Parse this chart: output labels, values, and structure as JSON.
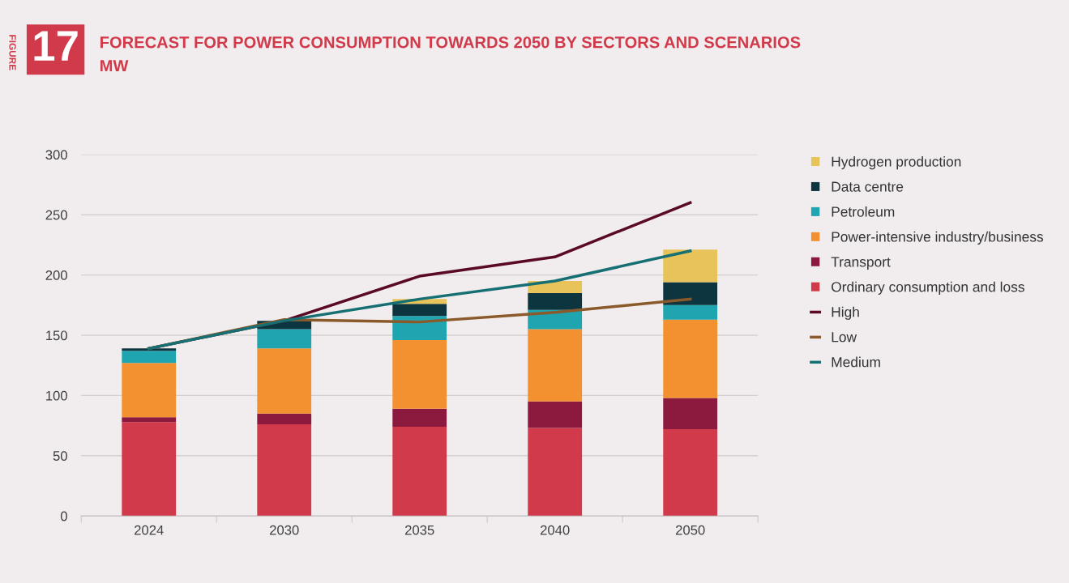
{
  "chart_data": {
    "type": "bar",
    "stacked": true,
    "title": "FORECAST FOR POWER CONSUMPTION TOWARDS 2050 BY SECTORS AND SCENARIOS",
    "subtitle": "MW",
    "annotations": [
      "FIGURE",
      "17"
    ],
    "categories": [
      "2024",
      "2030",
      "2035",
      "2040",
      "2050"
    ],
    "series": [
      {
        "name": "Ordinary consumption and loss",
        "color": "#d13a4a",
        "values": [
          78,
          76,
          74,
          73,
          72
        ]
      },
      {
        "name": "Transport",
        "color": "#8c1a3e",
        "values": [
          4,
          9,
          15,
          22,
          26
        ]
      },
      {
        "name": "Power-intensive industry/business",
        "color": "#f39130",
        "values": [
          45,
          54,
          57,
          60,
          65
        ]
      },
      {
        "name": "Petroleum",
        "color": "#1fa5b0",
        "values": [
          10,
          16,
          20,
          16,
          12
        ]
      },
      {
        "name": "Data centre",
        "color": "#0d3540",
        "values": [
          2,
          7,
          10,
          14,
          19
        ]
      },
      {
        "name": "Hydrogen production",
        "color": "#e8c35a",
        "values": [
          0,
          null,
          4,
          10,
          27
        ]
      },
      {
        "name": "High",
        "type": "line",
        "color": "#5a0a24",
        "values": [
          139,
          162,
          199,
          215,
          260
        ]
      },
      {
        "name": "Low",
        "type": "line",
        "color": "#8b5a2b",
        "values": [
          139,
          163,
          161,
          169,
          180
        ]
      },
      {
        "name": "Medium",
        "type": "line",
        "color": "#156f73",
        "values": [
          139,
          162,
          180,
          195,
          220
        ]
      }
    ],
    "ylim": [
      0,
      300
    ],
    "yticks": [
      0,
      50,
      100,
      150,
      200,
      250,
      300
    ],
    "grid": "y",
    "legend": "right",
    "marker": "none"
  }
}
